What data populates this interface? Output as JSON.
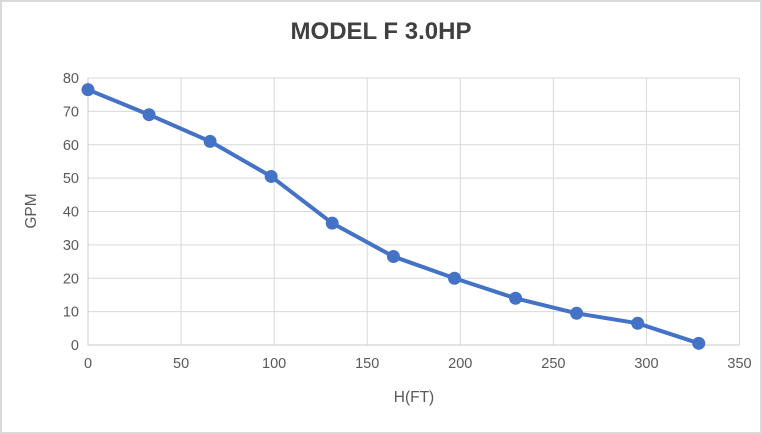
{
  "window": {
    "background_color": "#FFFFFF",
    "border_color": "#D9D9D9"
  },
  "chart_data": {
    "type": "line",
    "title": "MODEL F 3.0HP",
    "xlabel": "H(FT)",
    "ylabel": "GPM",
    "xlim": [
      0,
      350
    ],
    "ylim": [
      0,
      80
    ],
    "x_ticks": [
      0,
      50,
      100,
      150,
      200,
      250,
      300,
      350
    ],
    "y_ticks": [
      0,
      10,
      20,
      30,
      40,
      50,
      60,
      70,
      80
    ],
    "grid": true,
    "legend": false,
    "marker": "circle",
    "series": [
      {
        "color": "#4472C4",
        "x": [
          0,
          32.8,
          65.6,
          98.4,
          131.2,
          164.1,
          196.9,
          229.7,
          262.5,
          295.3,
          328.1
        ],
        "y": [
          76.5,
          69,
          61,
          50.5,
          36.5,
          26.5,
          20,
          14,
          9.5,
          6.5,
          0.5
        ]
      }
    ],
    "style": {
      "grid_color": "#D9D9D9",
      "axis_line_color": "#C8C8C8",
      "tick_label_color": "#595959",
      "title_color": "#404040",
      "axis_title_color": "#595959",
      "line_width": 4,
      "marker_radius": 6.5
    }
  }
}
